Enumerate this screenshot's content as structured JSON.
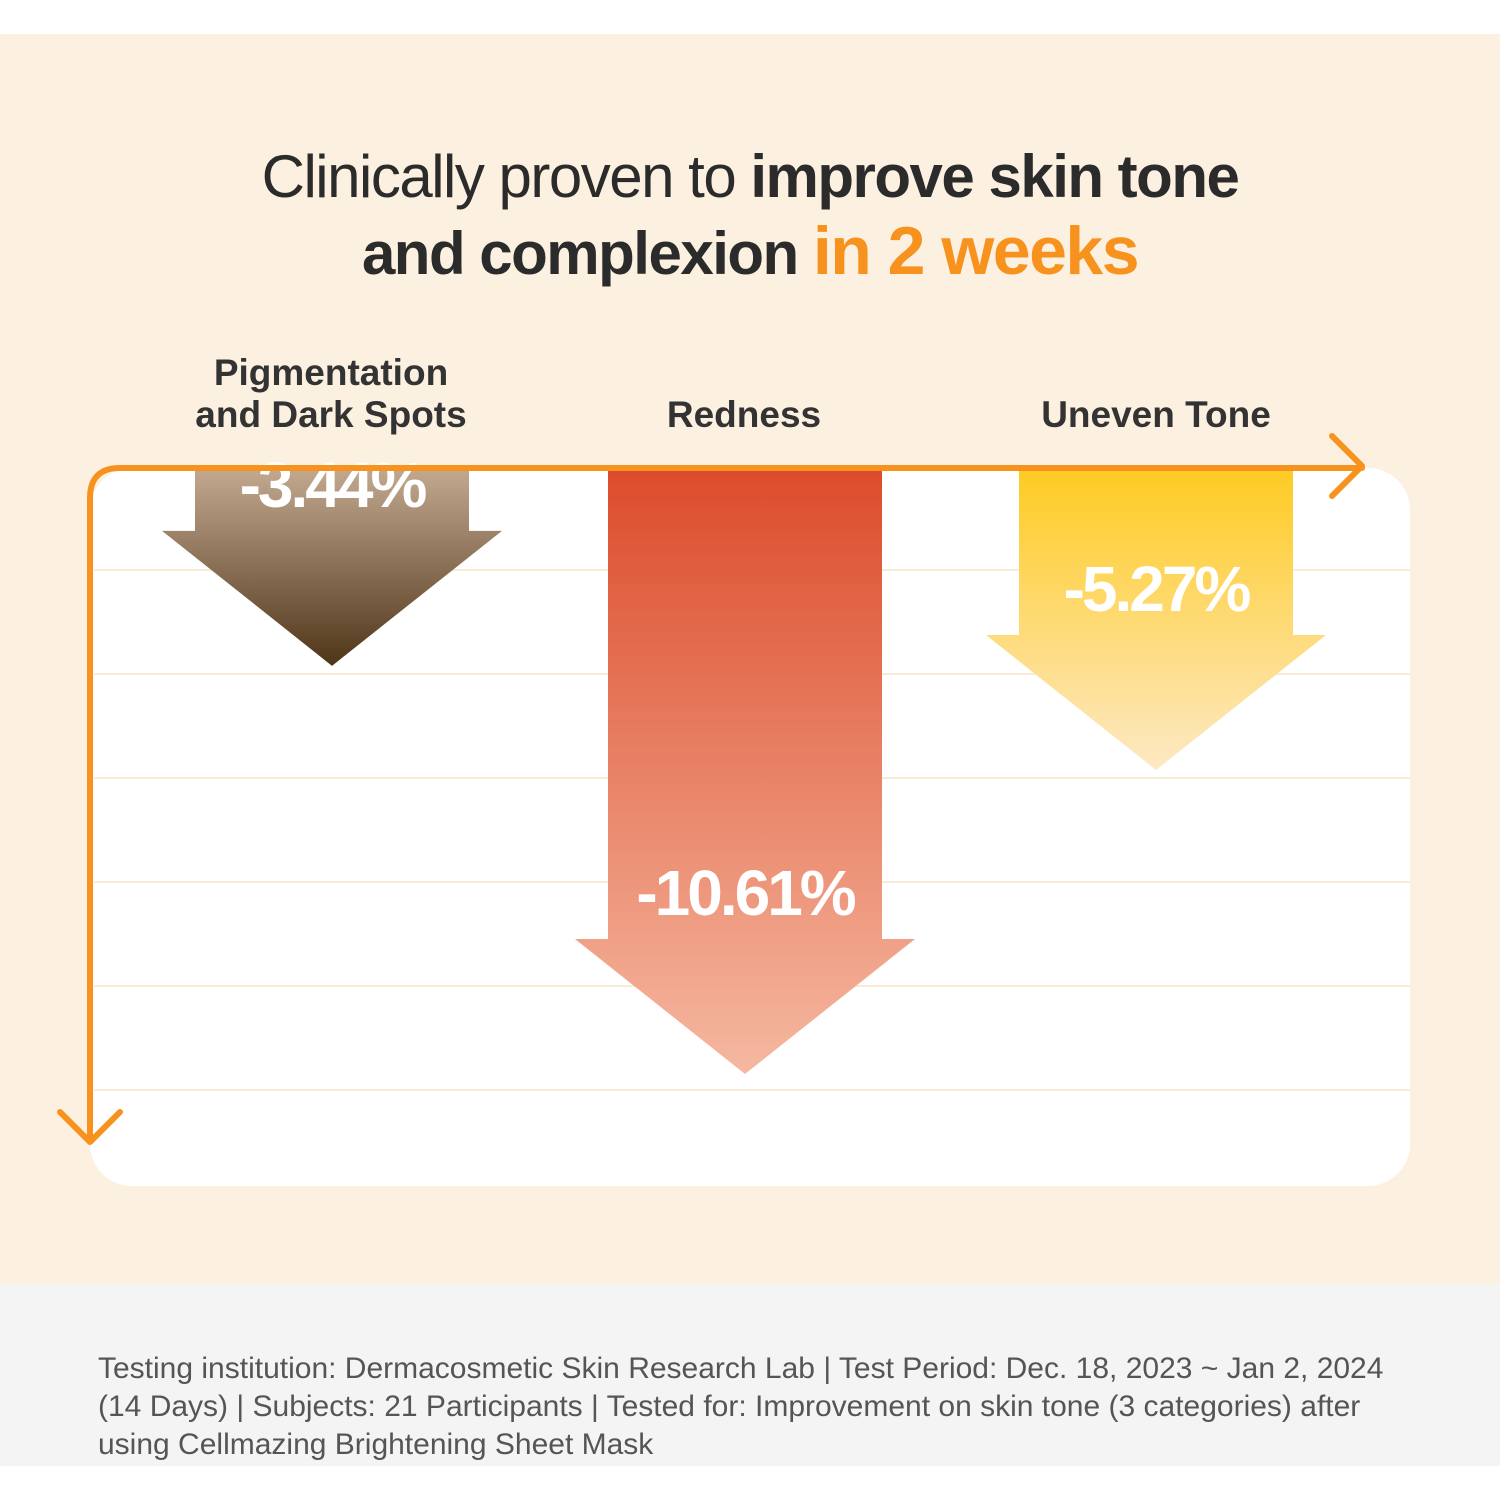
{
  "headline": {
    "line1_light": "Clinically proven to ",
    "line1_bold": "improve skin tone",
    "line2_bold": "and complexion ",
    "line2_accent": "in 2 weeks"
  },
  "colors": {
    "background": "#fcf1e0",
    "accent": "#f7921e",
    "footer_bg": "#f4f4f4"
  },
  "chart_data": {
    "type": "bar",
    "orientation": "downward-arrows",
    "categories": [
      "Pigmentation and Dark Spots",
      "Redness",
      "Uneven Tone"
    ],
    "category_lines": [
      [
        "Pigmentation",
        "and Dark Spots"
      ],
      [
        "Redness"
      ],
      [
        "Uneven Tone"
      ]
    ],
    "values": [
      -3.44,
      -10.61,
      -5.27
    ],
    "value_labels": [
      "-3.44%",
      "-10.61%",
      "-5.27%"
    ],
    "unit": "%",
    "ylim": [
      -13,
      0
    ],
    "grid": true,
    "series_colors": [
      [
        "#c2a88f",
        "#4f3518"
      ],
      [
        "#dc4c2c",
        "#f5b8a0"
      ],
      [
        "#fecb23",
        "#fde9c4"
      ]
    ]
  },
  "footnote": "Testing institution: Dermacosmetic Skin Research Lab | Test Period: Dec. 18, 2023 ~ Jan 2, 2024 (14 Days) | Subjects: 21 Participants | Tested for: Improvement on skin tone (3 categories) after using Cellmazing Brightening Sheet Mask"
}
